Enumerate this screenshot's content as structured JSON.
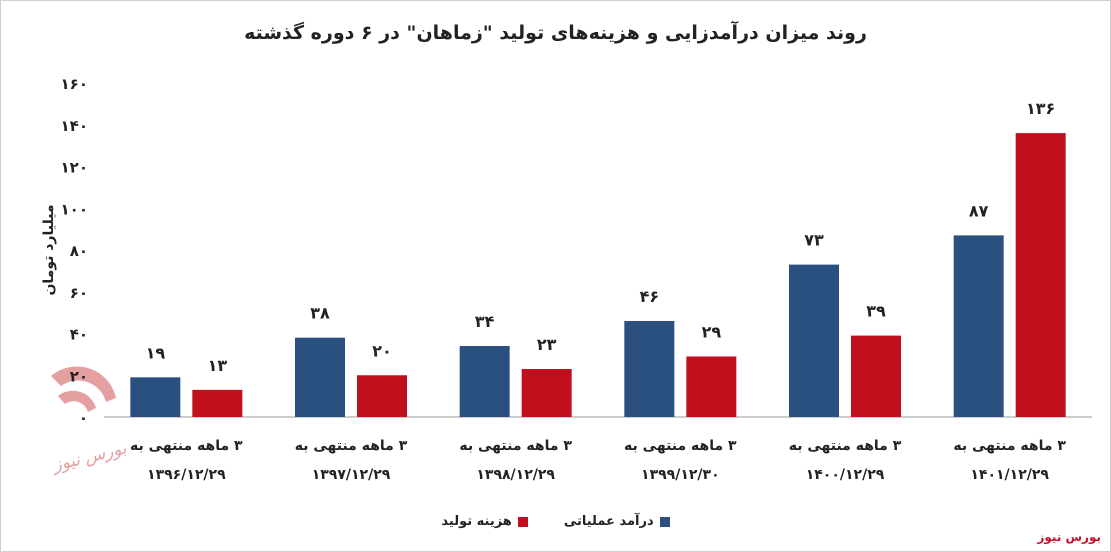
{
  "chart_data": {
    "type": "bar",
    "title": "روند میزان درآمدزایی و هزینه‌های تولید \"زماهان\" در ۶ دوره گذشته",
    "ylabel": "میلیارد تومان",
    "ylim": [
      0,
      160
    ],
    "yticks": [
      "۰",
      "۲۰",
      "۴۰",
      "۶۰",
      "۸۰",
      "۱۰۰",
      "۱۲۰",
      "۱۴۰",
      "۱۶۰"
    ],
    "legend_position": "bottom",
    "grid": false,
    "categories": [
      {
        "line1": "۳ ماهه منتهی به",
        "line2": "۱۳۹۶/۱۲/۲۹"
      },
      {
        "line1": "۳ ماهه منتهی به",
        "line2": "۱۳۹۷/۱۲/۲۹"
      },
      {
        "line1": "۳ ماهه منتهی به",
        "line2": "۱۳۹۸/۱۲/۲۹"
      },
      {
        "line1": "۳ ماهه منتهی به",
        "line2": "۱۳۹۹/۱۲/۳۰"
      },
      {
        "line1": "۳ ماهه منتهی به",
        "line2": "۱۴۰۰/۱۲/۲۹"
      },
      {
        "line1": "۳ ماهه منتهی به",
        "line2": "۱۴۰۱/۱۲/۲۹"
      }
    ],
    "series": [
      {
        "name": "درآمد عملیاتی",
        "color": "#2a5080",
        "values": [
          19,
          38,
          34,
          46,
          73,
          87
        ],
        "labels": [
          "۱۹",
          "۳۸",
          "۳۴",
          "۴۶",
          "۷۳",
          "۸۷"
        ]
      },
      {
        "name": "هزینه تولید",
        "color": "#c0101d",
        "values": [
          13,
          20,
          23,
          29,
          39,
          136
        ],
        "labels": [
          "۱۳",
          "۲۰",
          "۲۳",
          "۲۹",
          "۳۹",
          "۱۳۶"
        ]
      }
    ]
  },
  "watermark": {
    "text": "بورس نیوز"
  },
  "source": {
    "text": "بورس نیوز"
  }
}
